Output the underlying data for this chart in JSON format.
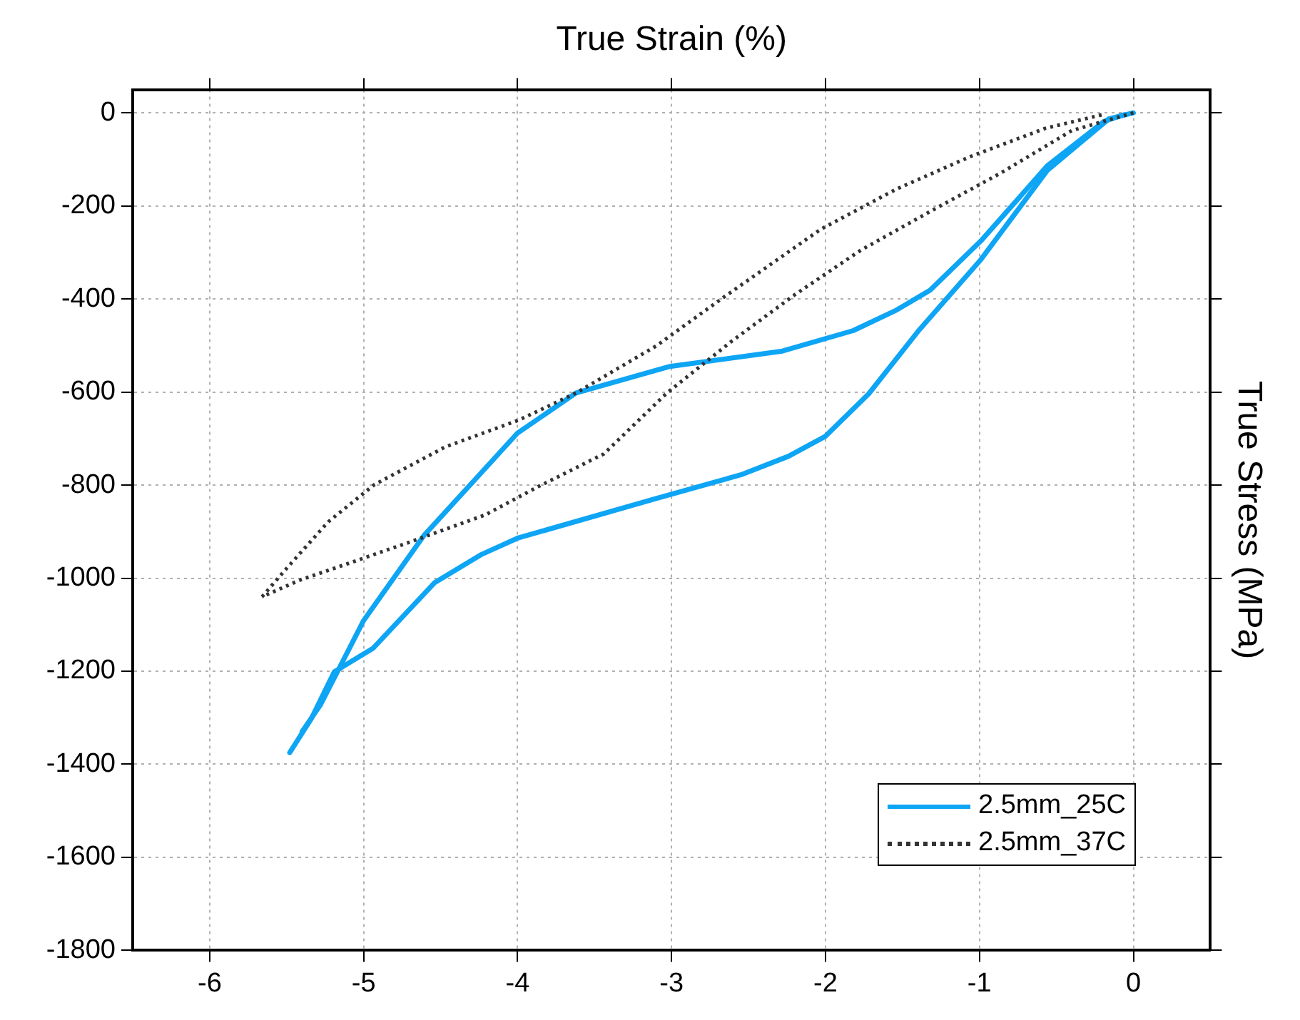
{
  "chart_data": {
    "type": "line",
    "xlabel": "True Strain (%)",
    "ylabel": "True Stress (MPa)",
    "xlim": [
      -6.5,
      0.5
    ],
    "xticks": [
      -6,
      -5,
      -4,
      -3,
      -2,
      -1,
      0
    ],
    "ylim": [
      -1800,
      50
    ],
    "yticks": [
      -1800,
      -1600,
      -1400,
      -1200,
      -1000,
      -800,
      -600,
      -400,
      -200,
      0
    ],
    "grid": true,
    "legend": "bottom right",
    "marker": "none",
    "series": [
      {
        "name": "2.5mm_25C",
        "color": "#0ea5f5",
        "line_style": "solid",
        "x": [
          0,
          -0.16,
          -0.56,
          -0.99,
          -1.39,
          -1.72,
          -2.0,
          -2.24,
          -2.55,
          -3.1,
          -4.0,
          -4.24,
          -4.54,
          -4.94,
          -5.19,
          -5.34,
          -5.48
        ],
        "values": [
          0,
          -13,
          -124,
          -315,
          -466,
          -604,
          -695,
          -738,
          -778,
          -829,
          -914,
          -950,
          -1010,
          -1151,
          -1201,
          -1302,
          -1375
        ]
      },
      {
        "color": "#0ea5f5",
        "line_style": "solid",
        "x": [
          -5.4,
          -5.28,
          -5.0,
          -4.61,
          -4.0,
          -3.62,
          -3.01,
          -2.28,
          -1.82,
          -1.54,
          -1.32,
          -0.99,
          -0.56,
          -0.19,
          -0.06
        ],
        "values": [
          -1330,
          -1272,
          -1091,
          -909,
          -688,
          -602,
          -545,
          -512,
          -468,
          -424,
          -381,
          -275,
          -114,
          -18,
          -4
        ]
      },
      {
        "name": "2.5mm_37C",
        "color": "#333333",
        "line_style": "dotted",
        "x": [
          0,
          -0.4,
          -0.86,
          -1.32,
          -1.77,
          -2.2,
          -2.61,
          -3.03,
          -3.44,
          -3.87,
          -4.21,
          -4.67,
          -5.07,
          -5.42,
          -5.66
        ],
        "values": [
          0,
          -38,
          -129,
          -212,
          -295,
          -391,
          -491,
          -602,
          -733,
          -804,
          -864,
          -919,
          -965,
          -1005,
          -1040
        ]
      },
      {
        "color": "#333333",
        "line_style": "dotted",
        "x": [
          -5.66,
          -5.49,
          -5.23,
          -4.93,
          -4.47,
          -3.99,
          -3.62,
          -3.1,
          -2.66,
          -2.03,
          -1.54,
          -1.06,
          -0.57,
          -0.19
        ],
        "values": [
          -1040,
          -975,
          -879,
          -799,
          -718,
          -660,
          -602,
          -501,
          -396,
          -250,
          -164,
          -94,
          -33,
          -3
        ]
      }
    ]
  }
}
